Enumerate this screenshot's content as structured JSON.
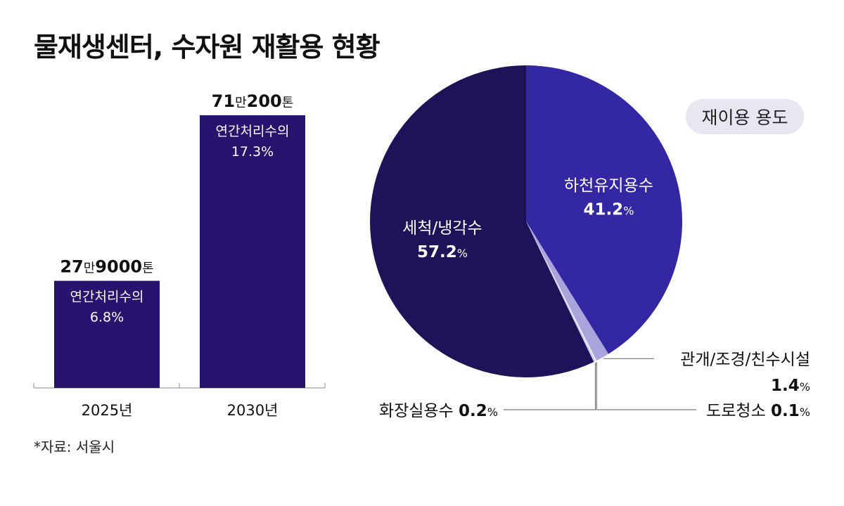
{
  "title": "물재생센터, 수자원 재활용 현황",
  "source": "*자료: 서울시",
  "chart_data": [
    {
      "type": "bar",
      "categories": [
        "2025년",
        "2030년"
      ],
      "values": [
        279000,
        710200
      ],
      "value_labels": [
        {
          "big1": "27",
          "small1": "만",
          "big2": "9000",
          "small2": "톤"
        },
        {
          "big1": "71",
          "small1": "만",
          "big2": "200",
          "small2": "톤"
        }
      ],
      "inner_labels": [
        {
          "line1": "연간처리수의",
          "line2": "6.8%"
        },
        {
          "line1": "연간처리수의",
          "line2": "17.3%"
        }
      ],
      "color": "#26146f"
    },
    {
      "type": "pie",
      "legend_title": "재이용 용도",
      "slices": [
        {
          "label": "하천유지용수",
          "value": 41.2,
          "display": "41.2",
          "color": "#3427a3",
          "label_pos": "inside"
        },
        {
          "label": "관개/조경/친수시설",
          "value": 1.4,
          "display": "1.4",
          "color": "#a9a4dc",
          "label_pos": "callout-right"
        },
        {
          "label": "도로청소",
          "value": 0.1,
          "display": "0.1",
          "color": "#ffffff",
          "label_pos": "callout-right"
        },
        {
          "label": "화장실용수",
          "value": 0.2,
          "display": "0.2",
          "color": "#cfcbee",
          "label_pos": "callout-left"
        },
        {
          "label": "세척/냉각수",
          "value": 57.2,
          "display": "57.2",
          "color": "#1e1358",
          "label_pos": "inside"
        }
      ],
      "unit": "%"
    }
  ]
}
